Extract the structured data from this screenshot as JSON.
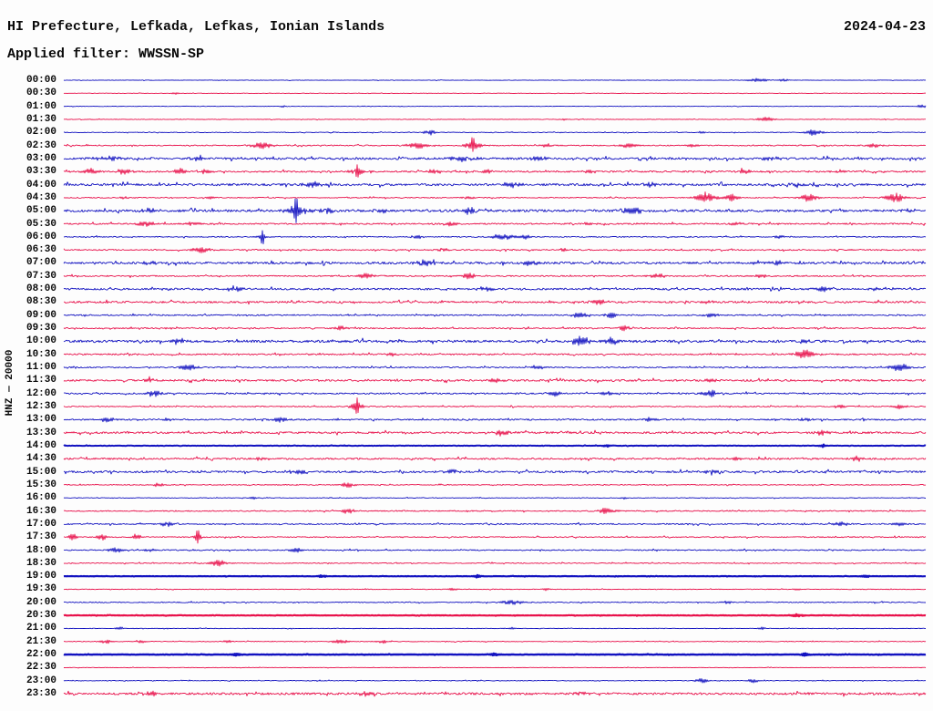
{
  "header": {
    "title": "HI Prefecture, Lefkada, Lefkas, Ionian Islands",
    "date": "2024-04-23",
    "filter": "Applied filter: WWSSN-SP"
  },
  "axis": {
    "station_label": "HNZ — 20000"
  },
  "colors": {
    "trace_blue": "#1212c0",
    "trace_red": "#e8114b",
    "text": "#0a0a0a",
    "background": "#fdfdfd"
  },
  "chart_data": {
    "type": "line",
    "subtype": "helicorder-seismogram",
    "title": "HI Prefecture, Lefkada, Lefkas, Ionian Islands",
    "date": "2024-04-23",
    "applied_filter": "WWSSN-SP",
    "channel_scale": "HNZ — 20000",
    "row_interval_minutes": 30,
    "legend_position": "none",
    "grid": false,
    "note": "48 half-hour traces, alternating blue (on the hour) and red (on the half hour). noise = background noise amplitude px, weight = stroke px, events = [position 0-1, amplitude px, half-width px, optional spike px]",
    "rows": [
      {
        "time": "00:00",
        "color": "blue",
        "noise": 0.25,
        "weight": 0.9,
        "events": [
          [
            0.805,
            1.4,
            10
          ],
          [
            0.835,
            1.0,
            5
          ]
        ]
      },
      {
        "time": "00:30",
        "color": "red",
        "noise": 0.22,
        "weight": 0.9,
        "events": [
          [
            0.13,
            0.7,
            4
          ]
        ]
      },
      {
        "time": "01:00",
        "color": "blue",
        "noise": 0.22,
        "weight": 0.9,
        "events": [
          [
            0.255,
            0.8,
            3
          ],
          [
            0.995,
            1.2,
            5
          ]
        ]
      },
      {
        "time": "01:30",
        "color": "red",
        "noise": 0.28,
        "weight": 0.9,
        "events": [
          [
            0.58,
            0.8,
            4
          ],
          [
            0.815,
            1.7,
            9
          ]
        ]
      },
      {
        "time": "02:00",
        "color": "blue",
        "noise": 0.35,
        "weight": 0.9,
        "events": [
          [
            0.425,
            1.7,
            7
          ],
          [
            0.74,
            0.9,
            4
          ],
          [
            0.87,
            2.1,
            9
          ]
        ]
      },
      {
        "time": "02:30",
        "color": "red",
        "noise": 0.55,
        "weight": 0.9,
        "events": [
          [
            0.23,
            2.0,
            13
          ],
          [
            0.41,
            2.3,
            11
          ],
          [
            0.475,
            2.6,
            9,
            5
          ],
          [
            0.56,
            1.2,
            8
          ],
          [
            0.655,
            1.4,
            9
          ],
          [
            0.73,
            1.1,
            7
          ],
          [
            0.94,
            1.4,
            9
          ]
        ]
      },
      {
        "time": "03:00",
        "color": "blue",
        "noise": 1.1,
        "weight": 0.9,
        "events": [
          [
            0.05,
            1.4,
            18
          ],
          [
            0.155,
            1.7,
            8
          ],
          [
            0.46,
            1.8,
            14
          ],
          [
            0.55,
            1.6,
            11
          ],
          [
            0.82,
            1.4,
            9
          ]
        ]
      },
      {
        "time": "03:30",
        "color": "red",
        "noise": 0.85,
        "weight": 0.9,
        "events": [
          [
            0.03,
            1.9,
            9
          ],
          [
            0.07,
            2.3,
            7
          ],
          [
            0.135,
            1.9,
            7
          ],
          [
            0.165,
            1.7,
            6
          ],
          [
            0.34,
            2.4,
            9,
            4
          ],
          [
            0.43,
            1.7,
            7
          ],
          [
            0.49,
            1.4,
            6
          ],
          [
            0.61,
            1.2,
            7
          ],
          [
            0.79,
            1.4,
            7
          ],
          [
            0.9,
            1.2,
            6
          ]
        ]
      },
      {
        "time": "04:00",
        "color": "blue",
        "noise": 1.15,
        "weight": 0.9,
        "events": [
          [
            0.29,
            2.1,
            9
          ],
          [
            0.52,
            1.4,
            11
          ],
          [
            0.68,
            1.4,
            9
          ],
          [
            0.85,
            1.4,
            8
          ]
        ]
      },
      {
        "time": "04:30",
        "color": "red",
        "noise": 0.5,
        "weight": 0.9,
        "events": [
          [
            0.07,
            1.1,
            5
          ],
          [
            0.17,
            1.0,
            5
          ],
          [
            0.47,
            1.1,
            6
          ],
          [
            0.745,
            3.2,
            12
          ],
          [
            0.775,
            2.8,
            7
          ],
          [
            0.865,
            2.8,
            10
          ],
          [
            0.965,
            3.2,
            11
          ]
        ]
      },
      {
        "time": "05:00",
        "color": "blue",
        "noise": 1.25,
        "weight": 0.9,
        "events": [
          [
            0.1,
            1.8,
            9
          ],
          [
            0.27,
            3.6,
            12,
            9
          ],
          [
            0.305,
            2.3,
            7
          ],
          [
            0.37,
            1.8,
            7
          ],
          [
            0.47,
            2.3,
            9
          ],
          [
            0.66,
            2.3,
            11
          ],
          [
            0.98,
            1.8,
            7
          ]
        ]
      },
      {
        "time": "05:30",
        "color": "red",
        "noise": 0.75,
        "weight": 0.9,
        "events": [
          [
            0.095,
            1.9,
            9
          ],
          [
            0.15,
            1.7,
            7
          ],
          [
            0.45,
            1.4,
            9
          ],
          [
            0.61,
            1.1,
            7
          ],
          [
            0.78,
            1.1,
            7
          ]
        ]
      },
      {
        "time": "06:00",
        "color": "blue",
        "noise": 0.55,
        "weight": 0.9,
        "events": [
          [
            0.23,
            2.3,
            4,
            5
          ],
          [
            0.41,
            1.4,
            6
          ],
          [
            0.51,
            2.3,
            11
          ],
          [
            0.535,
            1.9,
            6
          ],
          [
            0.83,
            1.1,
            6
          ]
        ]
      },
      {
        "time": "06:30",
        "color": "red",
        "noise": 0.65,
        "weight": 0.9,
        "events": [
          [
            0.16,
            1.9,
            11
          ],
          [
            0.44,
            1.4,
            6
          ],
          [
            0.58,
            1.0,
            6
          ]
        ]
      },
      {
        "time": "07:00",
        "color": "blue",
        "noise": 1.15,
        "weight": 0.9,
        "events": [
          [
            0.1,
            1.4,
            9
          ],
          [
            0.42,
            1.9,
            11
          ],
          [
            0.54,
            1.7,
            9
          ],
          [
            0.83,
            1.4,
            9
          ]
        ]
      },
      {
        "time": "07:30",
        "color": "red",
        "noise": 0.65,
        "weight": 0.9,
        "events": [
          [
            0.35,
            1.9,
            9
          ],
          [
            0.47,
            2.1,
            7
          ],
          [
            0.69,
            1.7,
            9
          ],
          [
            0.81,
            1.4,
            7
          ]
        ]
      },
      {
        "time": "08:00",
        "color": "blue",
        "noise": 0.95,
        "weight": 0.9,
        "events": [
          [
            0.2,
            1.4,
            9
          ],
          [
            0.49,
            1.4,
            9
          ],
          [
            0.88,
            1.7,
            9
          ],
          [
            0.94,
            1.4,
            7
          ]
        ]
      },
      {
        "time": "08:30",
        "color": "red",
        "noise": 1.0,
        "weight": 0.9,
        "events": [
          [
            0.62,
            2.1,
            9
          ],
          [
            0.75,
            1.4,
            7
          ]
        ]
      },
      {
        "time": "09:00",
        "color": "blue",
        "noise": 0.65,
        "weight": 0.9,
        "events": [
          [
            0.6,
            2.4,
            9
          ],
          [
            0.635,
            1.9,
            6
          ],
          [
            0.75,
            1.7,
            7
          ]
        ]
      },
      {
        "time": "09:30",
        "color": "red",
        "noise": 0.65,
        "weight": 0.9,
        "events": [
          [
            0.32,
            1.7,
            7
          ],
          [
            0.65,
            1.5,
            7
          ]
        ]
      },
      {
        "time": "10:00",
        "color": "blue",
        "noise": 1.3,
        "weight": 0.9,
        "events": [
          [
            0.13,
            1.7,
            7
          ],
          [
            0.6,
            3.3,
            11
          ],
          [
            0.635,
            2.8,
            7
          ],
          [
            0.86,
            1.4,
            7
          ]
        ]
      },
      {
        "time": "10:30",
        "color": "red",
        "noise": 0.75,
        "weight": 0.9,
        "events": [
          [
            0.38,
            1.4,
            7
          ],
          [
            0.86,
            3.3,
            11
          ]
        ]
      },
      {
        "time": "11:00",
        "color": "blue",
        "noise": 0.65,
        "weight": 0.9,
        "events": [
          [
            0.145,
            2.4,
            9
          ],
          [
            0.55,
            1.4,
            7
          ],
          [
            0.97,
            2.4,
            11
          ]
        ]
      },
      {
        "time": "11:30",
        "color": "red",
        "noise": 1.0,
        "weight": 0.9,
        "events": [
          [
            0.1,
            1.4,
            7
          ],
          [
            0.5,
            1.4,
            9
          ],
          [
            0.75,
            1.1,
            7
          ]
        ]
      },
      {
        "time": "12:00",
        "color": "blue",
        "noise": 0.75,
        "weight": 0.9,
        "events": [
          [
            0.105,
            2.4,
            7
          ],
          [
            0.57,
            1.9,
            7
          ],
          [
            0.63,
            1.9,
            7
          ],
          [
            0.75,
            2.4,
            9
          ]
        ]
      },
      {
        "time": "12:30",
        "color": "red",
        "noise": 0.55,
        "weight": 0.9,
        "events": [
          [
            0.34,
            2.8,
            7,
            5
          ],
          [
            0.9,
            1.4,
            6
          ],
          [
            0.97,
            1.7,
            7
          ]
        ]
      },
      {
        "time": "13:00",
        "color": "blue",
        "noise": 0.75,
        "weight": 0.9,
        "events": [
          [
            0.05,
            1.4,
            9
          ],
          [
            0.12,
            1.4,
            7
          ],
          [
            0.25,
            1.7,
            9
          ],
          [
            0.68,
            1.4,
            7
          ],
          [
            0.86,
            1.1,
            7
          ]
        ]
      },
      {
        "time": "13:30",
        "color": "red",
        "noise": 1.0,
        "weight": 0.9,
        "events": [
          [
            0.51,
            2.4,
            9
          ],
          [
            0.88,
            1.4,
            7
          ]
        ]
      },
      {
        "time": "14:00",
        "color": "blue",
        "noise": 0.22,
        "weight": 2.0,
        "events": [
          [
            0.63,
            0.9,
            4
          ],
          [
            0.88,
            0.9,
            4
          ]
        ]
      },
      {
        "time": "14:30",
        "color": "red",
        "noise": 0.9,
        "weight": 0.9,
        "events": [
          [
            0.23,
            1.1,
            7
          ],
          [
            0.78,
            1.4,
            7
          ],
          [
            0.92,
            1.7,
            7
          ]
        ]
      },
      {
        "time": "15:00",
        "color": "blue",
        "noise": 1.05,
        "weight": 0.9,
        "events": [
          [
            0.27,
            1.7,
            9
          ],
          [
            0.45,
            1.9,
            7
          ],
          [
            0.75,
            1.4,
            7
          ]
        ]
      },
      {
        "time": "15:30",
        "color": "red",
        "noise": 0.45,
        "weight": 0.9,
        "events": [
          [
            0.11,
            1.4,
            5
          ],
          [
            0.33,
            1.9,
            7
          ]
        ]
      },
      {
        "time": "16:00",
        "color": "blue",
        "noise": 0.3,
        "weight": 0.9,
        "events": [
          [
            0.22,
            0.9,
            4
          ],
          [
            0.65,
            0.8,
            4
          ]
        ]
      },
      {
        "time": "16:30",
        "color": "red",
        "noise": 0.55,
        "weight": 0.9,
        "events": [
          [
            0.33,
            1.9,
            7
          ],
          [
            0.63,
            2.1,
            9
          ]
        ]
      },
      {
        "time": "17:00",
        "color": "blue",
        "noise": 0.65,
        "weight": 0.9,
        "events": [
          [
            0.12,
            1.9,
            7
          ],
          [
            0.9,
            1.7,
            7
          ],
          [
            0.97,
            1.4,
            6
          ]
        ]
      },
      {
        "time": "17:30",
        "color": "red",
        "noise": 0.55,
        "weight": 0.9,
        "events": [
          [
            0.01,
            2.3,
            5
          ],
          [
            0.045,
            2.3,
            5
          ],
          [
            0.085,
            1.9,
            5
          ],
          [
            0.155,
            2.6,
            4,
            4
          ]
        ]
      },
      {
        "time": "18:00",
        "color": "blue",
        "noise": 0.55,
        "weight": 0.9,
        "events": [
          [
            0.06,
            1.7,
            9
          ],
          [
            0.1,
            1.4,
            6
          ],
          [
            0.27,
            1.9,
            7
          ]
        ]
      },
      {
        "time": "18:30",
        "color": "red",
        "noise": 0.45,
        "weight": 0.9,
        "events": [
          [
            0.18,
            2.1,
            9
          ]
        ]
      },
      {
        "time": "19:00",
        "color": "blue",
        "noise": 0.18,
        "weight": 2.2,
        "events": [
          [
            0.3,
            0.8,
            4
          ],
          [
            0.48,
            0.9,
            4
          ],
          [
            0.93,
            0.8,
            4
          ]
        ]
      },
      {
        "time": "19:30",
        "color": "red",
        "noise": 0.32,
        "weight": 0.9,
        "events": [
          [
            0.45,
            0.9,
            6
          ],
          [
            0.56,
            0.8,
            4
          ],
          [
            0.85,
            0.8,
            4
          ]
        ]
      },
      {
        "time": "20:00",
        "color": "blue",
        "noise": 0.5,
        "weight": 0.9,
        "events": [
          [
            0.52,
            1.4,
            13
          ],
          [
            0.77,
            0.9,
            7
          ]
        ]
      },
      {
        "time": "20:30",
        "color": "red",
        "noise": 0.22,
        "weight": 2.2,
        "events": [
          [
            0.85,
            0.9,
            7
          ]
        ]
      },
      {
        "time": "21:00",
        "color": "blue",
        "noise": 0.28,
        "weight": 0.9,
        "events": [
          [
            0.065,
            1.4,
            4
          ],
          [
            0.52,
            0.9,
            4
          ],
          [
            0.81,
            0.8,
            4
          ]
        ]
      },
      {
        "time": "21:30",
        "color": "red",
        "noise": 0.32,
        "weight": 0.9,
        "events": [
          [
            0.05,
            1.4,
            7
          ],
          [
            0.09,
            1.1,
            5
          ],
          [
            0.19,
            1.1,
            5
          ],
          [
            0.32,
            1.4,
            9
          ],
          [
            0.37,
            1.1,
            6
          ]
        ]
      },
      {
        "time": "22:00",
        "color": "blue",
        "noise": 0.22,
        "weight": 2.4,
        "events": [
          [
            0.2,
            0.8,
            5
          ],
          [
            0.5,
            0.8,
            4
          ],
          [
            0.86,
            0.8,
            4
          ]
        ]
      },
      {
        "time": "22:30",
        "color": "red",
        "noise": 0.25,
        "weight": 0.9,
        "events": []
      },
      {
        "time": "23:00",
        "color": "blue",
        "noise": 0.35,
        "weight": 0.9,
        "events": [
          [
            0.74,
            1.7,
            7
          ],
          [
            0.8,
            1.4,
            6
          ]
        ]
      },
      {
        "time": "23:30",
        "color": "red",
        "noise": 1.15,
        "weight": 0.9,
        "events": [
          [
            0.1,
            1.4,
            9
          ],
          [
            0.35,
            1.4,
            9
          ],
          [
            0.6,
            1.1,
            7
          ]
        ]
      }
    ]
  }
}
